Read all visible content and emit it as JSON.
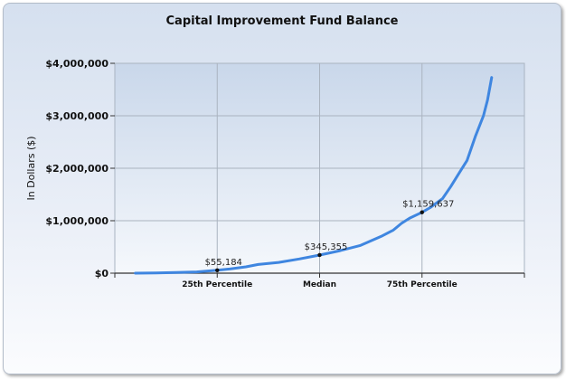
{
  "chart_data": {
    "type": "line",
    "title": "Capital Improvement Fund Balance",
    "ylabel": "In Dollars ($)",
    "xlabel": "",
    "ylim": [
      0,
      4000000
    ],
    "y_ticks": [
      0,
      1000000,
      2000000,
      3000000,
      4000000
    ],
    "y_tick_labels": [
      "$0",
      "$1,000,000",
      "$2,000,000",
      "$3,000,000",
      "$4,000,000"
    ],
    "x_range": [
      0,
      100
    ],
    "x_tick_labels": [
      {
        "at": 25,
        "label": "25th Percentile"
      },
      {
        "at": 50,
        "label": "Median"
      },
      {
        "at": 75,
        "label": "75th Percentile"
      }
    ],
    "vertical_grid_at": [
      25,
      50,
      75
    ],
    "series": [
      {
        "color": "#3f86e0",
        "points": [
          [
            5,
            0
          ],
          [
            10,
            5000
          ],
          [
            15,
            12000
          ],
          [
            20,
            25000
          ],
          [
            25,
            55184
          ],
          [
            28,
            80000
          ],
          [
            32,
            120000
          ],
          [
            35,
            165000
          ],
          [
            40,
            205000
          ],
          [
            45,
            270000
          ],
          [
            50,
            345355
          ],
          [
            55,
            430000
          ],
          [
            60,
            530000
          ],
          [
            65,
            700000
          ],
          [
            68,
            820000
          ],
          [
            70,
            950000
          ],
          [
            72,
            1050000
          ],
          [
            75,
            1159637
          ],
          [
            77,
            1250000
          ],
          [
            80,
            1420000
          ],
          [
            82,
            1650000
          ],
          [
            84,
            1900000
          ],
          [
            86,
            2150000
          ],
          [
            88,
            2600000
          ],
          [
            90,
            3000000
          ],
          [
            91,
            3300000
          ],
          [
            92,
            3730000
          ]
        ]
      }
    ],
    "annotations": [
      {
        "x": 25,
        "y": 55184,
        "label": "$55,184"
      },
      {
        "x": 50,
        "y": 345355,
        "label": "$345,355"
      },
      {
        "x": 75,
        "y": 1159637,
        "label": "$1,159,637"
      }
    ],
    "grid": true,
    "legend": "none"
  }
}
